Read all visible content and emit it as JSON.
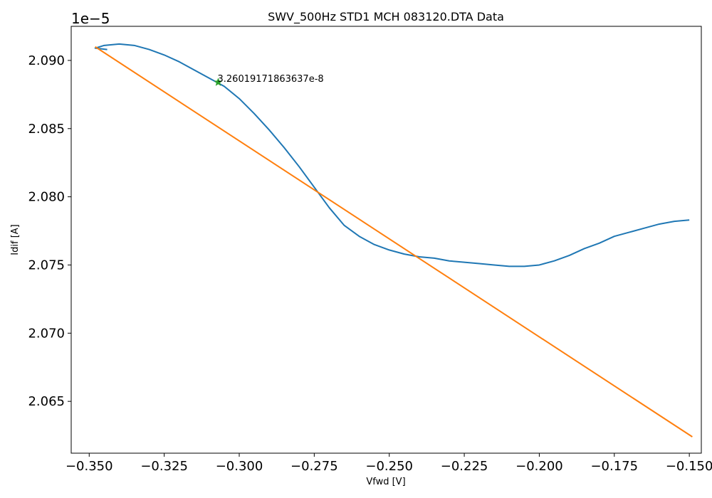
{
  "chart_data": {
    "type": "line",
    "title": "SWV_500Hz STD1 MCH 083120.DTA Data",
    "xlabel": "Vfwd [V]",
    "ylabel": "Idif [A]",
    "y_offset_label": "1e−5",
    "xlim": [
      -0.356,
      -0.146
    ],
    "ylim": [
      2.0612,
      2.0925
    ],
    "x_ticks": [
      -0.35,
      -0.325,
      -0.3,
      -0.275,
      -0.25,
      -0.225,
      -0.2,
      -0.175,
      -0.15
    ],
    "x_tick_labels": [
      "−0.350",
      "−0.325",
      "−0.300",
      "−0.275",
      "−0.250",
      "−0.225",
      "−0.200",
      "−0.175",
      "−0.150"
    ],
    "y_ticks": [
      2.065,
      2.07,
      2.075,
      2.08,
      2.085,
      2.09
    ],
    "y_tick_labels": [
      "2.065",
      "2.070",
      "2.075",
      "2.080",
      "2.085",
      "2.090"
    ],
    "grid": false,
    "series": [
      {
        "color": "#1f77b4",
        "x": [
          -0.344,
          -0.348,
          -0.345,
          -0.34,
          -0.335,
          -0.33,
          -0.325,
          -0.32,
          -0.315,
          -0.31,
          -0.305,
          -0.3,
          -0.295,
          -0.29,
          -0.285,
          -0.28,
          -0.275,
          -0.27,
          -0.265,
          -0.26,
          -0.255,
          -0.25,
          -0.245,
          -0.24,
          -0.235,
          -0.23,
          -0.225,
          -0.22,
          -0.215,
          -0.21,
          -0.205,
          -0.2,
          -0.195,
          -0.19,
          -0.185,
          -0.18,
          -0.175,
          -0.17,
          -0.165,
          -0.16,
          -0.155,
          -0.15
        ],
        "y": [
          2.0908,
          2.0909,
          2.0911,
          2.0912,
          2.0911,
          2.0908,
          2.0904,
          2.0899,
          2.0893,
          2.0887,
          2.0881,
          2.0872,
          2.0861,
          2.0849,
          2.0836,
          2.0822,
          2.0807,
          2.0792,
          2.0779,
          2.0771,
          2.0765,
          2.0761,
          2.0758,
          2.0756,
          2.0755,
          2.0753,
          2.0752,
          2.0751,
          2.075,
          2.0749,
          2.0749,
          2.075,
          2.0753,
          2.0757,
          2.0762,
          2.0766,
          2.0771,
          2.0774,
          2.0777,
          2.078,
          2.0782,
          2.0783
        ]
      },
      {
        "color": "#ff7f0e",
        "x": [
          -0.348,
          -0.149
        ],
        "y": [
          2.091,
          2.0624
        ]
      }
    ],
    "marker": {
      "x": -0.307,
      "y": 2.0884,
      "color": "#2ca02c",
      "symbol": "star"
    },
    "annotation": {
      "text": "3.26019171863637e-8",
      "x": -0.307,
      "y": 2.0884
    }
  }
}
